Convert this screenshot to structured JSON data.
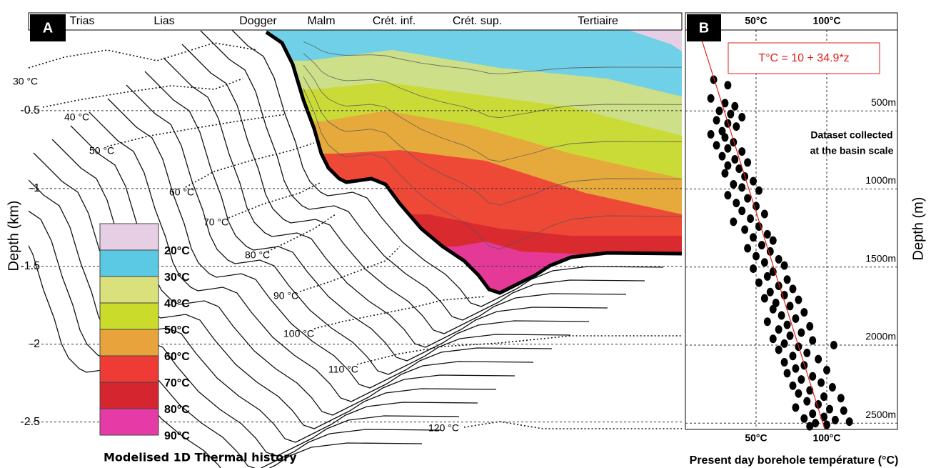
{
  "chart_data": [
    {
      "type": "burial-history",
      "panel": "A",
      "periods": [
        "Trias",
        "Lias",
        "Dogger",
        "Malm",
        "Crét. inf.",
        "Crét. sup.",
        "Tertiaire"
      ],
      "y_label": "Depth (km)",
      "ylim": [
        0,
        -2.8
      ],
      "yticks": [
        -0.5,
        -1,
        -1.5,
        -2,
        -2.5
      ],
      "grid": true,
      "isotherms": [
        "30 °C",
        "40 °C",
        "50 °C",
        "60 °C",
        "70 °C",
        "80 °C",
        "90 °C",
        "100 °C",
        "110 °C",
        "120 °C"
      ],
      "legend_colors": [
        "#e6cfe4",
        "#5cc9e4",
        "#d9e07c",
        "#cadb2c",
        "#e9a33c",
        "#ee3b36",
        "#d5262f",
        "#e63ba6"
      ],
      "legend_labels": [
        "20°C",
        "30°C",
        "40°C",
        "50°C",
        "60°C",
        "70°C",
        "80°C",
        "90°C"
      ],
      "title": "Modelised 1D Thermal history"
    },
    {
      "type": "scatter",
      "panel": "B",
      "color": "#000000",
      "x": [
        20,
        30,
        18,
        28,
        35,
        24,
        32,
        40,
        22,
        30,
        36,
        26,
        18,
        28,
        34,
        22,
        30,
        40,
        26,
        35,
        44,
        30,
        38,
        28,
        42,
        48,
        34,
        40,
        52,
        30,
        44,
        36,
        50,
        40,
        56,
        46,
        34,
        52,
        42,
        58,
        48,
        62,
        54,
        44,
        60,
        50,
        66,
        56,
        70,
        48,
        62,
        58,
        72,
        52,
        66,
        76,
        60,
        70,
        56,
        80,
        64,
        74,
        62,
        84,
        68,
        78,
        58,
        72,
        88,
        66,
        82,
        74,
        62,
        90,
        70,
        80,
        105,
        66,
        86,
        76,
        94,
        70,
        84,
        78,
        100,
        72,
        90,
        82,
        96,
        76,
        104,
        88,
        80,
        98,
        110,
        86,
        94,
        78,
        102,
        112,
        90,
        98,
        84,
        106,
        116,
        92,
        100,
        88
      ],
      "y": [
        300,
        335,
        420,
        450,
        470,
        500,
        520,
        540,
        560,
        580,
        600,
        630,
        650,
        670,
        700,
        720,
        740,
        760,
        790,
        810,
        830,
        850,
        870,
        900,
        920,
        950,
        970,
        990,
        1010,
        1040,
        1060,
        1090,
        1110,
        1140,
        1160,
        1190,
        1210,
        1240,
        1260,
        1290,
        1310,
        1330,
        1360,
        1380,
        1400,
        1430,
        1450,
        1470,
        1490,
        1510,
        1530,
        1560,
        1580,
        1600,
        1620,
        1640,
        1660,
        1680,
        1700,
        1710,
        1730,
        1750,
        1770,
        1790,
        1810,
        1830,
        1850,
        1870,
        1880,
        1900,
        1920,
        1940,
        1960,
        1970,
        1990,
        2010,
        2000,
        2030,
        2050,
        2070,
        2090,
        2110,
        2130,
        2150,
        2160,
        2180,
        2200,
        2220,
        2240,
        2260,
        2270,
        2290,
        2310,
        2330,
        2340,
        2360,
        2380,
        2400,
        2410,
        2420,
        2440,
        2460,
        2470,
        2480,
        2490,
        2500,
        2510,
        2520
      ],
      "xlim": [
        0,
        150
      ],
      "ylim": [
        0,
        2540
      ],
      "xticks": [
        {
          "value": 50,
          "label": "50°C"
        },
        {
          "value": 100,
          "label": "100°C"
        }
      ],
      "yticks": [
        {
          "value": 500,
          "label": "500m"
        },
        {
          "value": 1000,
          "label": "1000m"
        },
        {
          "value": 1500,
          "label": "1500m"
        },
        {
          "value": 2000,
          "label": "2000m"
        },
        {
          "value": 2500,
          "label": "2500m"
        }
      ],
      "grid": true,
      "x_label": "Present day borehole température (°C)",
      "y_label": "Depth (m)",
      "fit": {
        "label": "T°C = 10 + 34.9*z",
        "intercept": 10,
        "slope": 34.9,
        "color": "#e0201b"
      },
      "annotation": [
        "Dataset collected",
        "at the basin scale"
      ]
    }
  ]
}
